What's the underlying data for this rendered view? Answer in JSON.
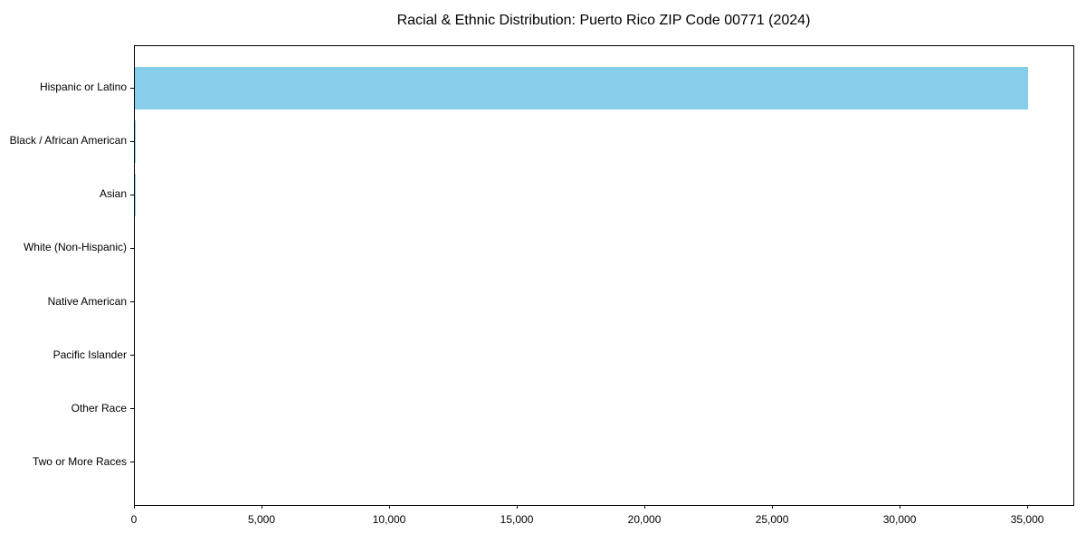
{
  "chart_data": {
    "type": "bar",
    "orientation": "horizontal",
    "title": "Racial & Ethnic Distribution: Puerto Rico ZIP Code 00771 (2024)",
    "categories": [
      "Hispanic or Latino",
      "Black / African American",
      "Asian",
      "White (Non-Hispanic)",
      "Native American",
      "Pacific Islander",
      "Other Race",
      "Two or More Races"
    ],
    "values": [
      35000,
      50,
      35,
      0,
      0,
      0,
      0,
      0
    ],
    "bar_color": "#87CEEB",
    "axis_color": "#000000",
    "background_color": "#ffffff",
    "xlabel": "",
    "ylabel": "",
    "xlim": [
      0,
      36770
    ],
    "xticks": [
      0,
      5000,
      10000,
      15000,
      20000,
      25000,
      30000,
      35000
    ],
    "xtick_labels": [
      "0",
      "5,000",
      "10,000",
      "15,000",
      "20,000",
      "25,000",
      "30,000",
      "35,000"
    ],
    "grid": false,
    "legend": false
  }
}
